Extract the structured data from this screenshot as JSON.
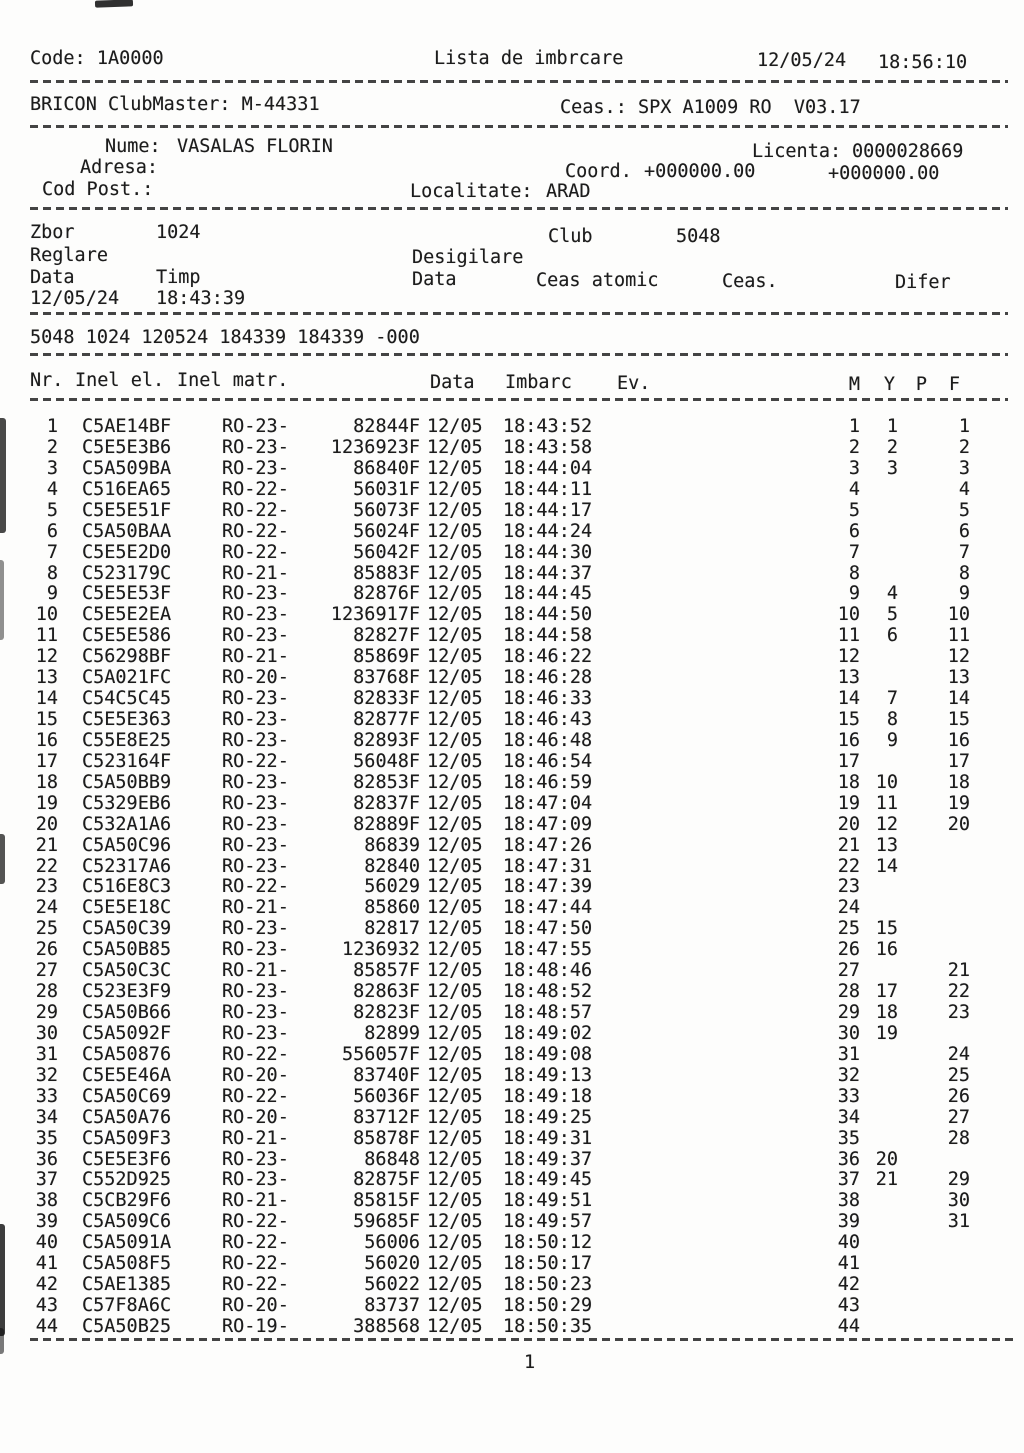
{
  "header": {
    "code": "Code: 1A0000",
    "title": "Lista de imbrcare",
    "date": "12/05/24",
    "time": "18:56:10",
    "device": "BRICON ClubMaster: M-44331",
    "clock": "Ceas.: SPX A1009 RO  V03.17"
  },
  "owner": {
    "nume_label": "Nume:",
    "nume": "VASALAS FLORIN",
    "licenta_label": "Licenta:",
    "licenta": "0000028669",
    "adresa_label": "Adresa:",
    "coord_label": "Coord.",
    "coord_1": "+000000.00",
    "coord_2": "+000000.00",
    "cod_post_label": "Cod Post.:",
    "localitate_label": "Localitate:",
    "localitate": "ARAD"
  },
  "flight": {
    "zbor_label": "Zbor",
    "zbor": "1024",
    "club_label": "Club",
    "club": "5048",
    "reglare_label": "Reglare",
    "desigilare_label": "Desigilare",
    "data_label_left": "Data",
    "timp_label": "Timp",
    "data_label_right": "Data",
    "ceas_atomic_label": "Ceas atomic",
    "ceas_label": "Ceas.",
    "difer_label": "Difer",
    "reglare_data": "12/05/24",
    "reglare_timp": "18:43:39",
    "seal_summary": "5048 1024 120524 184339 184339 -000"
  },
  "table": {
    "headers": {
      "nr": "Nr.",
      "inel_el": "Inel el.",
      "inel_matr": "Inel matr.",
      "data": "Data",
      "imbarc": "Imbarc",
      "ev": "Ev.",
      "m": "M",
      "y": "Y",
      "p": "P",
      "f": "F"
    },
    "rows": [
      {
        "nr": "1",
        "inel": "C5AE14BF",
        "serie": "RO-23-",
        "matr": "82844F",
        "data": "12/05",
        "imbarc": "18:43:52",
        "m": "1",
        "y": "1",
        "f": "1"
      },
      {
        "nr": "2",
        "inel": "C5E5E3B6",
        "serie": "RO-23-",
        "matr": "1236923F",
        "data": "12/05",
        "imbarc": "18:43:58",
        "m": "2",
        "y": "2",
        "f": "2"
      },
      {
        "nr": "3",
        "inel": "C5A509BA",
        "serie": "RO-23-",
        "matr": "86840F",
        "data": "12/05",
        "imbarc": "18:44:04",
        "m": "3",
        "y": "3",
        "f": "3"
      },
      {
        "nr": "4",
        "inel": "C516EA65",
        "serie": "RO-22-",
        "matr": "56031F",
        "data": "12/05",
        "imbarc": "18:44:11",
        "m": "4",
        "y": "",
        "f": "4"
      },
      {
        "nr": "5",
        "inel": "C5E5E51F",
        "serie": "RO-22-",
        "matr": "56073F",
        "data": "12/05",
        "imbarc": "18:44:17",
        "m": "5",
        "y": "",
        "f": "5"
      },
      {
        "nr": "6",
        "inel": "C5A50BAA",
        "serie": "RO-22-",
        "matr": "56024F",
        "data": "12/05",
        "imbarc": "18:44:24",
        "m": "6",
        "y": "",
        "f": "6"
      },
      {
        "nr": "7",
        "inel": "C5E5E2D0",
        "serie": "RO-22-",
        "matr": "56042F",
        "data": "12/05",
        "imbarc": "18:44:30",
        "m": "7",
        "y": "",
        "f": "7"
      },
      {
        "nr": "8",
        "inel": "C523179C",
        "serie": "RO-21-",
        "matr": "85883F",
        "data": "12/05",
        "imbarc": "18:44:37",
        "m": "8",
        "y": "",
        "f": "8"
      },
      {
        "nr": "9",
        "inel": "C5E5E53F",
        "serie": "RO-23-",
        "matr": "82876F",
        "data": "12/05",
        "imbarc": "18:44:45",
        "m": "9",
        "y": "4",
        "f": "9"
      },
      {
        "nr": "10",
        "inel": "C5E5E2EA",
        "serie": "RO-23-",
        "matr": "1236917F",
        "data": "12/05",
        "imbarc": "18:44:50",
        "m": "10",
        "y": "5",
        "f": "10"
      },
      {
        "nr": "11",
        "inel": "C5E5E586",
        "serie": "RO-23-",
        "matr": "82827F",
        "data": "12/05",
        "imbarc": "18:44:58",
        "m": "11",
        "y": "6",
        "f": "11"
      },
      {
        "nr": "12",
        "inel": "C56298BF",
        "serie": "RO-21-",
        "matr": "85869F",
        "data": "12/05",
        "imbarc": "18:46:22",
        "m": "12",
        "y": "",
        "f": "12"
      },
      {
        "nr": "13",
        "inel": "C5A021FC",
        "serie": "RO-20-",
        "matr": "83768F",
        "data": "12/05",
        "imbarc": "18:46:28",
        "m": "13",
        "y": "",
        "f": "13"
      },
      {
        "nr": "14",
        "inel": "C54C5C45",
        "serie": "RO-23-",
        "matr": "82833F",
        "data": "12/05",
        "imbarc": "18:46:33",
        "m": "14",
        "y": "7",
        "f": "14"
      },
      {
        "nr": "15",
        "inel": "C5E5E363",
        "serie": "RO-23-",
        "matr": "82877F",
        "data": "12/05",
        "imbarc": "18:46:43",
        "m": "15",
        "y": "8",
        "f": "15"
      },
      {
        "nr": "16",
        "inel": "C55E8E25",
        "serie": "RO-23-",
        "matr": "82893F",
        "data": "12/05",
        "imbarc": "18:46:48",
        "m": "16",
        "y": "9",
        "f": "16"
      },
      {
        "nr": "17",
        "inel": "C523164F",
        "serie": "RO-22-",
        "matr": "56048F",
        "data": "12/05",
        "imbarc": "18:46:54",
        "m": "17",
        "y": "",
        "f": "17"
      },
      {
        "nr": "18",
        "inel": "C5A50BB9",
        "serie": "RO-23-",
        "matr": "82853F",
        "data": "12/05",
        "imbarc": "18:46:59",
        "m": "18",
        "y": "10",
        "f": "18"
      },
      {
        "nr": "19",
        "inel": "C5329EB6",
        "serie": "RO-23-",
        "matr": "82837F",
        "data": "12/05",
        "imbarc": "18:47:04",
        "m": "19",
        "y": "11",
        "f": "19"
      },
      {
        "nr": "20",
        "inel": "C532A1A6",
        "serie": "RO-23-",
        "matr": "82889F",
        "data": "12/05",
        "imbarc": "18:47:09",
        "m": "20",
        "y": "12",
        "f": "20"
      },
      {
        "nr": "21",
        "inel": "C5A50C96",
        "serie": "RO-23-",
        "matr": "86839",
        "data": "12/05",
        "imbarc": "18:47:26",
        "m": "21",
        "y": "13",
        "f": ""
      },
      {
        "nr": "22",
        "inel": "C52317A6",
        "serie": "RO-23-",
        "matr": "82840",
        "data": "12/05",
        "imbarc": "18:47:31",
        "m": "22",
        "y": "14",
        "f": ""
      },
      {
        "nr": "23",
        "inel": "C516E8C3",
        "serie": "RO-22-",
        "matr": "56029",
        "data": "12/05",
        "imbarc": "18:47:39",
        "m": "23",
        "y": "",
        "f": ""
      },
      {
        "nr": "24",
        "inel": "C5E5E18C",
        "serie": "RO-21-",
        "matr": "85860",
        "data": "12/05",
        "imbarc": "18:47:44",
        "m": "24",
        "y": "",
        "f": ""
      },
      {
        "nr": "25",
        "inel": "C5A50C39",
        "serie": "RO-23-",
        "matr": "82817",
        "data": "12/05",
        "imbarc": "18:47:50",
        "m": "25",
        "y": "15",
        "f": ""
      },
      {
        "nr": "26",
        "inel": "C5A50B85",
        "serie": "RO-23-",
        "matr": "1236932",
        "data": "12/05",
        "imbarc": "18:47:55",
        "m": "26",
        "y": "16",
        "f": ""
      },
      {
        "nr": "27",
        "inel": "C5A50C3C",
        "serie": "RO-21-",
        "matr": "85857F",
        "data": "12/05",
        "imbarc": "18:48:46",
        "m": "27",
        "y": "",
        "f": "21"
      },
      {
        "nr": "28",
        "inel": "C523E3F9",
        "serie": "RO-23-",
        "matr": "82863F",
        "data": "12/05",
        "imbarc": "18:48:52",
        "m": "28",
        "y": "17",
        "f": "22"
      },
      {
        "nr": "29",
        "inel": "C5A50B66",
        "serie": "RO-23-",
        "matr": "82823F",
        "data": "12/05",
        "imbarc": "18:48:57",
        "m": "29",
        "y": "18",
        "f": "23"
      },
      {
        "nr": "30",
        "inel": "C5A5092F",
        "serie": "RO-23-",
        "matr": "82899",
        "data": "12/05",
        "imbarc": "18:49:02",
        "m": "30",
        "y": "19",
        "f": ""
      },
      {
        "nr": "31",
        "inel": "C5A50876",
        "serie": "RO-22-",
        "matr": "556057F",
        "data": "12/05",
        "imbarc": "18:49:08",
        "m": "31",
        "y": "",
        "f": "24"
      },
      {
        "nr": "32",
        "inel": "C5E5E46A",
        "serie": "RO-20-",
        "matr": "83740F",
        "data": "12/05",
        "imbarc": "18:49:13",
        "m": "32",
        "y": "",
        "f": "25"
      },
      {
        "nr": "33",
        "inel": "C5A50C69",
        "serie": "RO-22-",
        "matr": "56036F",
        "data": "12/05",
        "imbarc": "18:49:18",
        "m": "33",
        "y": "",
        "f": "26"
      },
      {
        "nr": "34",
        "inel": "C5A50A76",
        "serie": "RO-20-",
        "matr": "83712F",
        "data": "12/05",
        "imbarc": "18:49:25",
        "m": "34",
        "y": "",
        "f": "27"
      },
      {
        "nr": "35",
        "inel": "C5A509F3",
        "serie": "RO-21-",
        "matr": "85878F",
        "data": "12/05",
        "imbarc": "18:49:31",
        "m": "35",
        "y": "",
        "f": "28"
      },
      {
        "nr": "36",
        "inel": "C5E5E3F6",
        "serie": "RO-23-",
        "matr": "86848",
        "data": "12/05",
        "imbarc": "18:49:37",
        "m": "36",
        "y": "20",
        "f": ""
      },
      {
        "nr": "37",
        "inel": "C552D925",
        "serie": "RO-23-",
        "matr": "82875F",
        "data": "12/05",
        "imbarc": "18:49:45",
        "m": "37",
        "y": "21",
        "f": "29"
      },
      {
        "nr": "38",
        "inel": "C5CB29F6",
        "serie": "RO-21-",
        "matr": "85815F",
        "data": "12/05",
        "imbarc": "18:49:51",
        "m": "38",
        "y": "",
        "f": "30"
      },
      {
        "nr": "39",
        "inel": "C5A509C6",
        "serie": "RO-22-",
        "matr": "59685F",
        "data": "12/05",
        "imbarc": "18:49:57",
        "m": "39",
        "y": "",
        "f": "31"
      },
      {
        "nr": "40",
        "inel": "C5A5091A",
        "serie": "RO-22-",
        "matr": "56006",
        "data": "12/05",
        "imbarc": "18:50:12",
        "m": "40",
        "y": "",
        "f": ""
      },
      {
        "nr": "41",
        "inel": "C5A508F5",
        "serie": "RO-22-",
        "matr": "56020",
        "data": "12/05",
        "imbarc": "18:50:17",
        "m": "41",
        "y": "",
        "f": ""
      },
      {
        "nr": "42",
        "inel": "C5AE1385",
        "serie": "RO-22-",
        "matr": "56022",
        "data": "12/05",
        "imbarc": "18:50:23",
        "m": "42",
        "y": "",
        "f": ""
      },
      {
        "nr": "43",
        "inel": "C57F8A6C",
        "serie": "RO-20-",
        "matr": "83737",
        "data": "12/05",
        "imbarc": "18:50:29",
        "m": "43",
        "y": "",
        "f": ""
      },
      {
        "nr": "44",
        "inel": "C5A50B25",
        "serie": "RO-19-",
        "matr": "388568",
        "data": "12/05",
        "imbarc": "18:50:35",
        "m": "44",
        "y": "",
        "f": ""
      }
    ]
  },
  "footer": {
    "page_number": "1"
  }
}
